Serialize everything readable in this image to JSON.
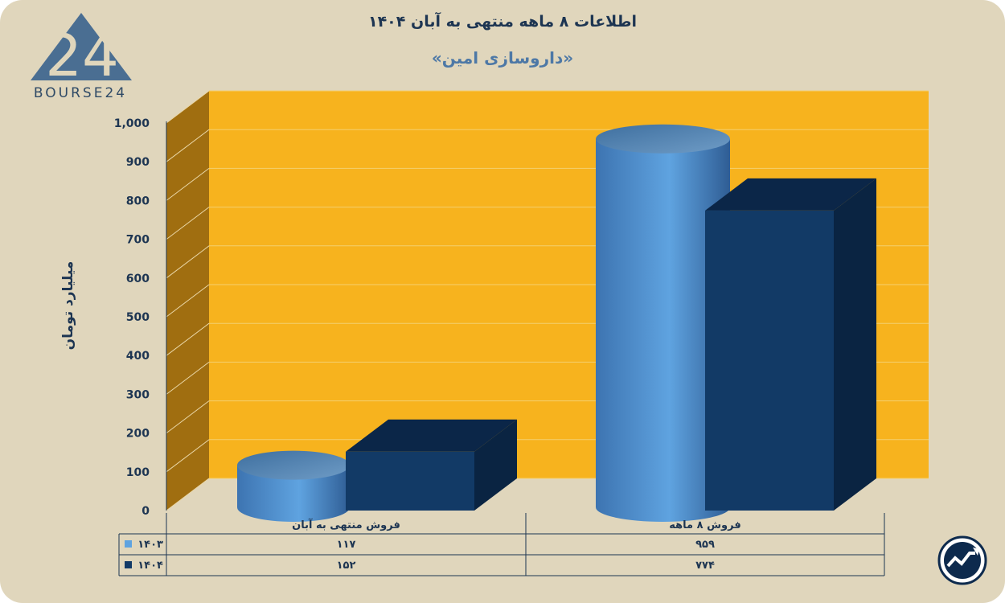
{
  "header": {
    "title": "اطلاعات ۸ ماهه منتهی به آبان ۱۴۰۴",
    "subtitle": "«داروسازی امین»"
  },
  "logo": {
    "text": "BOURSE24",
    "mark": "24"
  },
  "colors": {
    "background": "#e0d6bc",
    "plot_back": "#f7b31e",
    "plot_side": "#a06e10",
    "series_1403": "#5fa3e0",
    "series_1404": "#123a66"
  },
  "chart_data": {
    "type": "bar",
    "title": "اطلاعات ۸ ماهه منتهی به آبان ۱۴۰۴",
    "subtitle": "«داروسازی امین»",
    "ylabel": "میلیارد تومان",
    "ylim": [
      0,
      1000
    ],
    "yticks": [
      "0",
      "100",
      "200",
      "300",
      "400",
      "500",
      "600",
      "700",
      "800",
      "900",
      "1,000"
    ],
    "categories": [
      "فروش منتهی به  آبان",
      "فروش ۸  ماهه"
    ],
    "series": [
      {
        "name": "۱۴۰۳",
        "shape": "cylinder",
        "values": [
          117,
          959
        ],
        "labels": [
          "۱۱۷",
          "۹۵۹"
        ]
      },
      {
        "name": "۱۴۰۴",
        "shape": "box",
        "values": [
          152,
          774
        ],
        "labels": [
          "۱۵۲",
          "۷۷۴"
        ]
      }
    ],
    "grid": true,
    "legend": "data-table"
  },
  "badge": {
    "icon": "trend-up-icon"
  }
}
